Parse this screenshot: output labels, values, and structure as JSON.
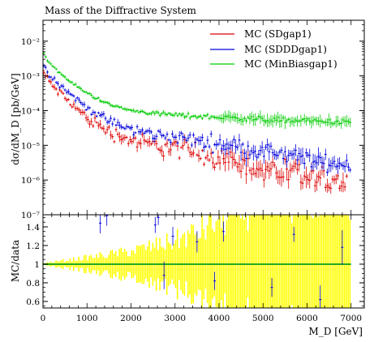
{
  "chart_data": [
    {
      "type": "scatter",
      "title": "Mass of the Diffractive System",
      "xlabel": "",
      "ylabel": "dσ/dM_D [pb/GeV]",
      "xlim": [
        0,
        7300
      ],
      "ylim": [
        1e-07,
        0.04
      ],
      "log_y": true,
      "yticks": [
        {
          "v": 1e-07,
          "label": "10⁻⁷"
        },
        {
          "v": 1e-06,
          "label": "10⁻⁶"
        },
        {
          "v": 1e-05,
          "label": "10⁻⁵"
        },
        {
          "v": 0.0001,
          "label": "10⁻⁴"
        },
        {
          "v": 0.001,
          "label": "10⁻³"
        },
        {
          "v": 0.01,
          "label": "10⁻²"
        }
      ],
      "legend_position": "top-right",
      "series": [
        {
          "name": "MC (SDgap1)",
          "color": "#dd0000",
          "knots_x": [
            20,
            100,
            300,
            600,
            1000,
            1500,
            2000,
            2500,
            3000,
            3500,
            4000,
            4500,
            5000,
            5500,
            6000,
            6500,
            7000
          ],
          "knots_y": [
            0.0012,
            0.0008,
            0.0004,
            0.00018,
            6e-05,
            2.5e-05,
            1.4e-05,
            1e-05,
            8.5e-06,
            6e-06,
            4.5e-06,
            3e-06,
            2e-06,
            1.5e-06,
            1.1e-06,
            9e-07,
            8e-07
          ],
          "x_end": 6900,
          "scatter": 0.55
        },
        {
          "name": "MC (SDDDgap1)",
          "color": "#0000dd",
          "knots_x": [
            20,
            100,
            300,
            600,
            1000,
            1500,
            2000,
            2500,
            3000,
            3500,
            4000,
            4500,
            5000,
            5500,
            6000,
            6500,
            7000
          ],
          "knots_y": [
            0.002,
            0.0013,
            0.0007,
            0.00032,
            0.00012,
            5e-05,
            2.8e-05,
            2.1e-05,
            1.7e-05,
            1.4e-05,
            1.1e-05,
            8.5e-06,
            6.5e-06,
            5e-06,
            4e-06,
            3.2e-06,
            2.5e-06
          ],
          "x_end": 7000,
          "scatter": 0.35
        },
        {
          "name": "MC (MinBiasgap1)",
          "color": "#00cc00",
          "knots_x": [
            20,
            100,
            300,
            600,
            1000,
            1500,
            2000,
            2500,
            3000,
            3500,
            4000,
            4500,
            5000,
            5500,
            6000,
            6500,
            7000
          ],
          "knots_y": [
            0.0045,
            0.0028,
            0.0015,
            0.0007,
            0.00032,
            0.00015,
            0.0001,
            8.5e-05,
            7.5e-05,
            6.8e-05,
            6.5e-05,
            6e-05,
            5.6e-05,
            5.2e-05,
            5e-05,
            4.7e-05,
            4.5e-05
          ],
          "x_end": 7000,
          "scatter": 0.12
        }
      ]
    },
    {
      "type": "scatter",
      "title": "",
      "xlabel": "M_D [GeV]",
      "ylabel": "MC/data",
      "xlim": [
        0,
        7300
      ],
      "ylim": [
        0.53,
        1.53
      ],
      "xticks": [
        0,
        1000,
        2000,
        3000,
        4000,
        5000,
        6000,
        7000
      ],
      "yticks": [
        0.6,
        0.8,
        1,
        1.2,
        1.4
      ],
      "reference_line": 1,
      "reference_color": "#22aa22",
      "band_color": "#ffff00",
      "band_halfwidth_knots_x": [
        0,
        1000,
        2000,
        3000,
        3500,
        4000,
        4500,
        5000,
        7000
      ],
      "band_halfwidth_knots_y": [
        0.01,
        0.07,
        0.14,
        0.25,
        0.34,
        0.48,
        0.6,
        0.75,
        0.8
      ],
      "ratio_points": [
        {
          "x": 1300,
          "y": 1.44
        },
        {
          "x": 1450,
          "y": 1.52
        },
        {
          "x": 2550,
          "y": 1.42
        },
        {
          "x": 2620,
          "y": 1.5
        },
        {
          "x": 2750,
          "y": 0.88
        },
        {
          "x": 2950,
          "y": 1.3
        },
        {
          "x": 3500,
          "y": 1.24
        },
        {
          "x": 3900,
          "y": 0.82
        },
        {
          "x": 4100,
          "y": 1.35
        },
        {
          "x": 5200,
          "y": 0.75
        },
        {
          "x": 5700,
          "y": 1.32
        },
        {
          "x": 6300,
          "y": 0.62
        },
        {
          "x": 6800,
          "y": 1.18
        }
      ],
      "ratio_color": "#0000dd"
    }
  ]
}
